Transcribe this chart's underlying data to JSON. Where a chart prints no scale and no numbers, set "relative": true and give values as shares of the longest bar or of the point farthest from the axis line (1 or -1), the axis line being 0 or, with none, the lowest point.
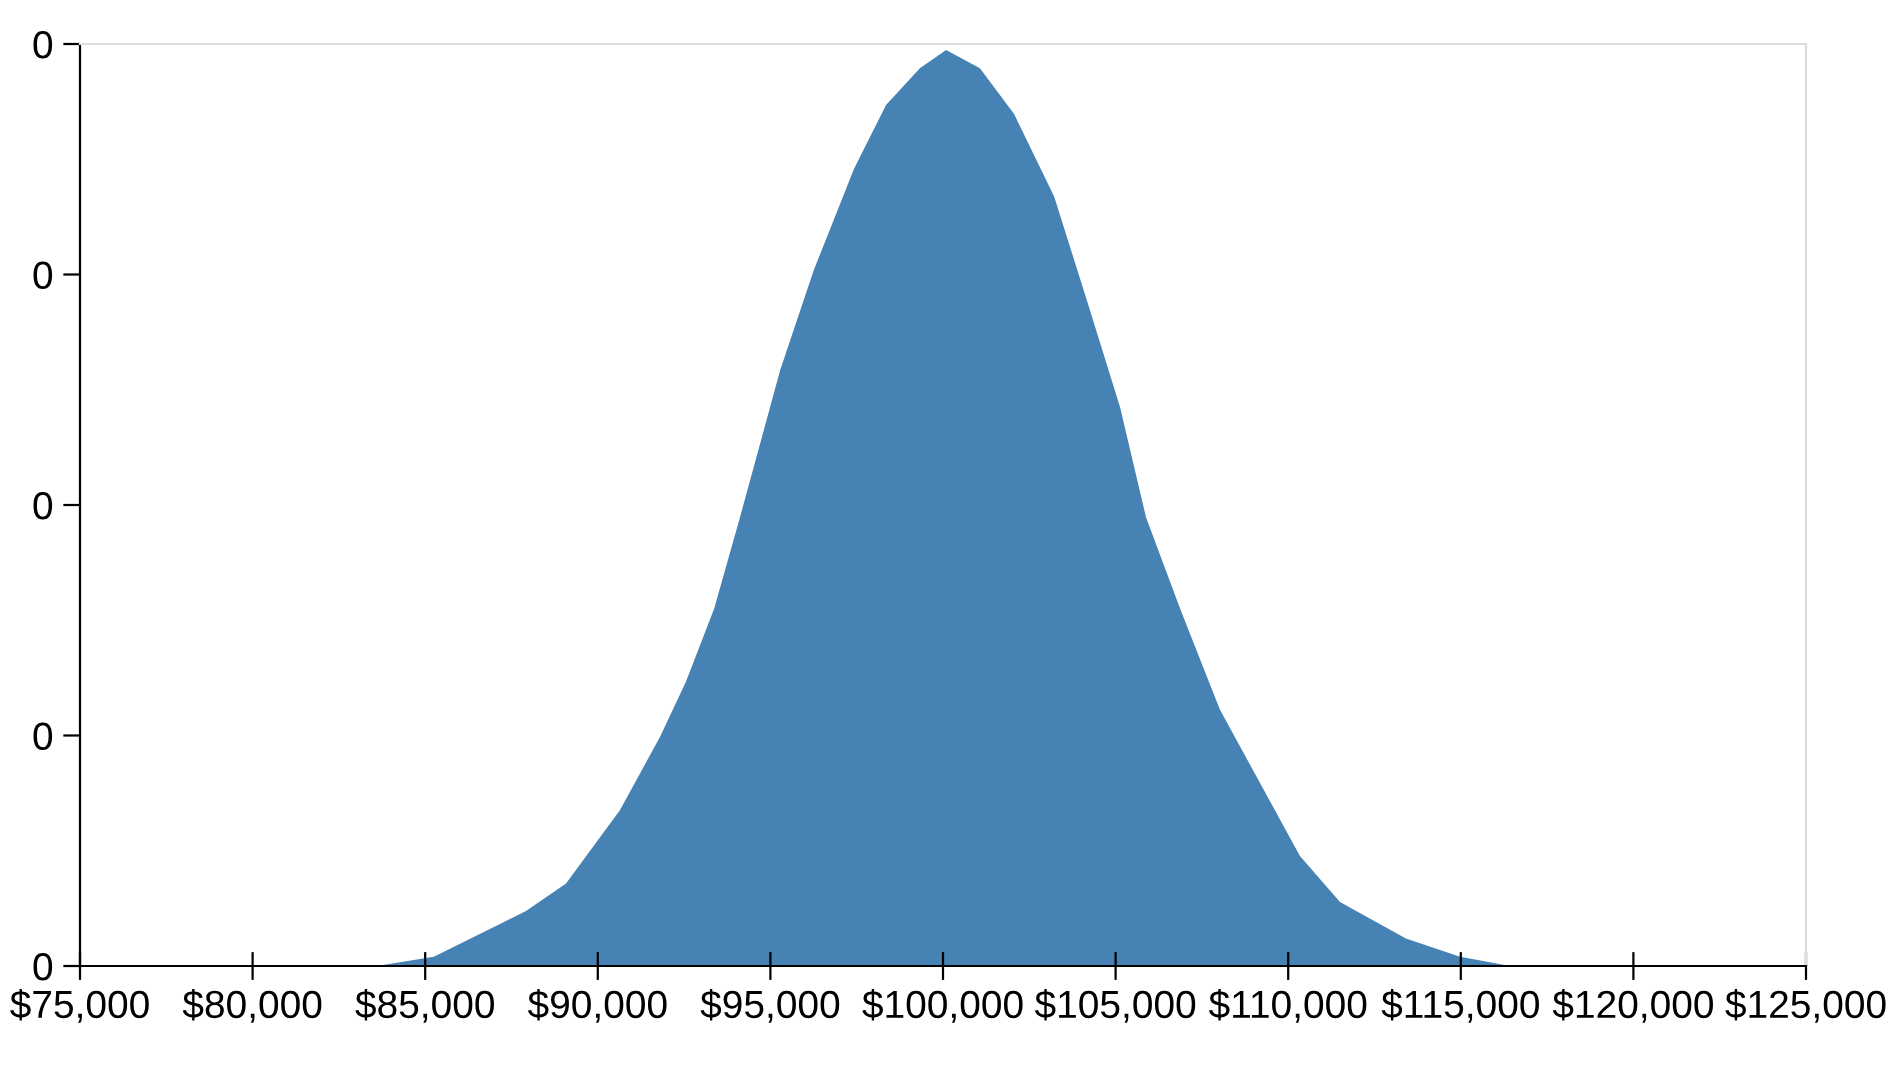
{
  "chart_data": {
    "type": "area",
    "color": "#4682b4",
    "relative": true,
    "x": [
      83600,
      85250,
      87920,
      89080,
      90640,
      91800,
      92550,
      93370,
      94120,
      95280,
      96260,
      97420,
      98350,
      99330,
      100090,
      101070,
      102060,
      103220,
      104140,
      105130,
      105880,
      106870,
      108020,
      109180,
      110340,
      111500,
      113410,
      114980,
      116430
    ],
    "values": [
      0,
      0.01,
      0.06,
      0.09,
      0.17,
      0.25,
      0.31,
      0.39,
      0.49,
      0.65,
      0.76,
      0.87,
      0.94,
      0.98,
      1,
      0.98,
      0.93,
      0.84,
      0.73,
      0.61,
      0.49,
      0.39,
      0.28,
      0.2,
      0.12,
      0.07,
      0.03,
      0.01,
      0
    ],
    "xlim": [
      75000,
      125000
    ],
    "xticks": [
      {
        "value": 75000,
        "label": "$75,000"
      },
      {
        "value": 80000,
        "label": "$80,000"
      },
      {
        "value": 85000,
        "label": "$85,000"
      },
      {
        "value": 90000,
        "label": "$90,000"
      },
      {
        "value": 95000,
        "label": "$95,000"
      },
      {
        "value": 100000,
        "label": "$100,000"
      },
      {
        "value": 105000,
        "label": "$105,000"
      },
      {
        "value": 110000,
        "label": "$110,000"
      },
      {
        "value": 115000,
        "label": "$115,000"
      },
      {
        "value": 120000,
        "label": "$120,000"
      },
      {
        "value": 125000,
        "label": "$125,000"
      }
    ],
    "annotations": [
      "0",
      "0",
      "0",
      "0",
      "0"
    ],
    "grid": false,
    "legend": false
  }
}
